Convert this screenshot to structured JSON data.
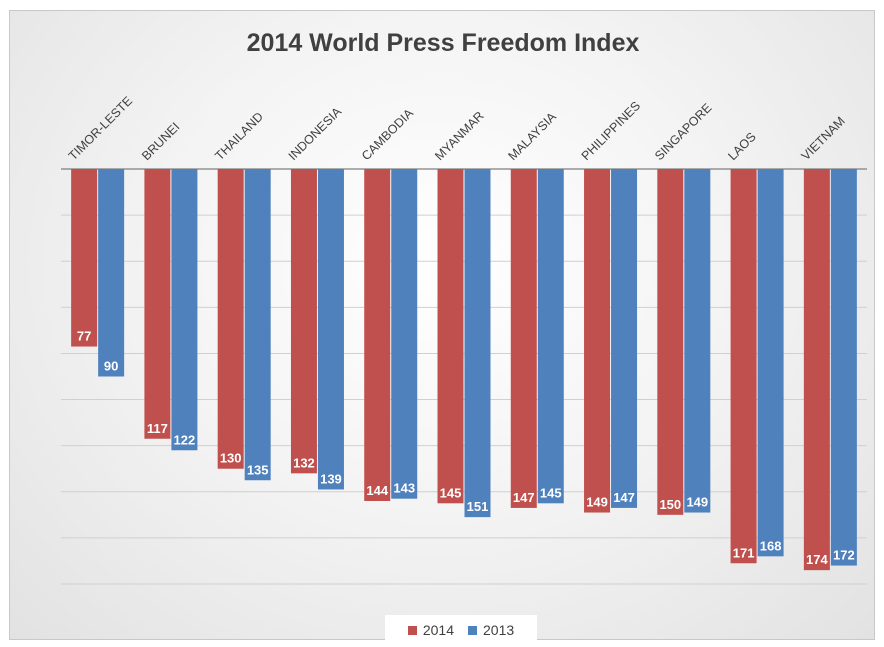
{
  "chart_data": {
    "type": "bar",
    "title": "2014 World Press Freedom Index",
    "orientation": "vertical-inverted",
    "categories": [
      "TIMOR-LESTE",
      "BRUNEI",
      "THAILAND",
      "INDONESIA",
      "CAMBODIA",
      "MYANMAR",
      "MALAYSIA",
      "PHILIPPINES",
      "SINGAPORE",
      "LAOS",
      "VIETNAM"
    ],
    "series": [
      {
        "name": "2014",
        "color": "#c0504d",
        "values": [
          77,
          117,
          130,
          132,
          144,
          145,
          147,
          149,
          150,
          171,
          174
        ]
      },
      {
        "name": "2013",
        "color": "#4f81bd",
        "values": [
          90,
          122,
          135,
          139,
          143,
          151,
          145,
          147,
          149,
          168,
          172
        ]
      }
    ],
    "ylim": [
      0,
      180
    ],
    "legend": "bottom",
    "grid": true,
    "data_labels": true
  }
}
